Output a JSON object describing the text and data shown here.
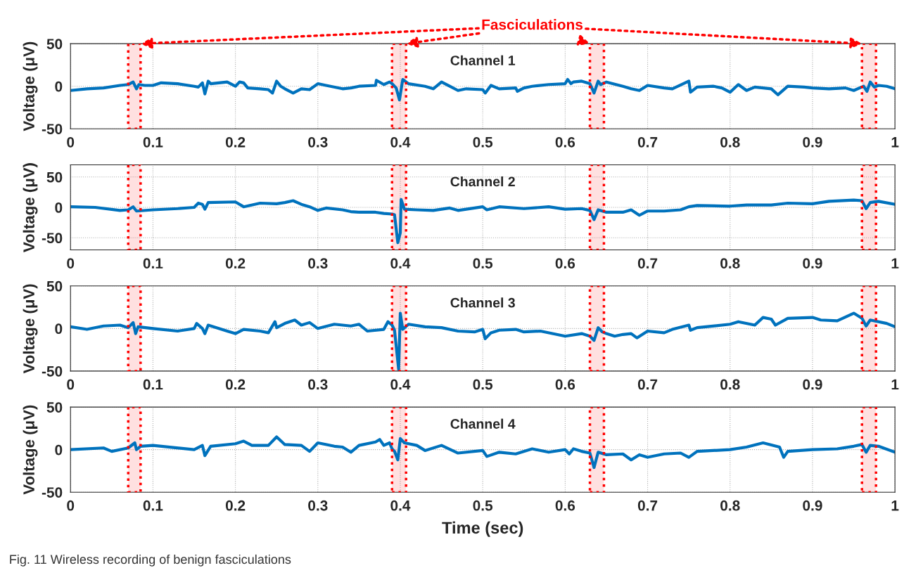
{
  "chart_data": [
    {
      "type": "line",
      "title": "Channel 1",
      "ylabel": "Voltage (μV)",
      "xlim": [
        0,
        1
      ],
      "ylim": [
        -50,
        50
      ],
      "xticks": [
        0,
        0.1,
        0.2,
        0.3,
        0.4,
        0.5,
        0.6,
        0.7,
        0.8,
        0.9,
        1
      ],
      "yticks": [
        -50,
        0,
        50
      ],
      "grid": true,
      "legend": false,
      "x": [
        0,
        0.02,
        0.04,
        0.06,
        0.07,
        0.076,
        0.08,
        0.083,
        0.09,
        0.1,
        0.11,
        0.13,
        0.15,
        0.155,
        0.16,
        0.163,
        0.167,
        0.17,
        0.19,
        0.2,
        0.205,
        0.21,
        0.215,
        0.23,
        0.24,
        0.245,
        0.25,
        0.255,
        0.26,
        0.27,
        0.28,
        0.29,
        0.3,
        0.31,
        0.33,
        0.34,
        0.35,
        0.37,
        0.371,
        0.38,
        0.387,
        0.39,
        0.395,
        0.399,
        0.403,
        0.41,
        0.43,
        0.44,
        0.45,
        0.46,
        0.47,
        0.48,
        0.5,
        0.503,
        0.51,
        0.52,
        0.54,
        0.542,
        0.55,
        0.56,
        0.58,
        0.6,
        0.603,
        0.607,
        0.61,
        0.62,
        0.63,
        0.635,
        0.64,
        0.643,
        0.65,
        0.67,
        0.68,
        0.69,
        0.7,
        0.72,
        0.73,
        0.75,
        0.752,
        0.76,
        0.78,
        0.79,
        0.8,
        0.81,
        0.82,
        0.83,
        0.85,
        0.858,
        0.87,
        0.89,
        0.9,
        0.92,
        0.94,
        0.95,
        0.962,
        0.966,
        0.97,
        0.975,
        0.98,
        0.99,
        1
      ],
      "series": [
        {
          "color": "#0072bd",
          "values": [
            -5,
            -3,
            -2,
            1,
            2,
            5,
            -3,
            2,
            1,
            1,
            4,
            3,
            0,
            -1,
            4,
            -9,
            6,
            3,
            5,
            0,
            5,
            4,
            -2,
            -3,
            -4,
            -8,
            6,
            0,
            -3,
            -8,
            -3,
            -4,
            3,
            1,
            -3,
            -2,
            0,
            1,
            7,
            2,
            5,
            3,
            -2,
            -16,
            8,
            3,
            0,
            -3,
            5,
            0,
            -5,
            -3,
            -4,
            -8,
            1,
            -3,
            -2,
            -6,
            -2,
            0,
            2,
            3,
            8,
            3,
            5,
            6,
            3,
            -8,
            6,
            2,
            5,
            0,
            -3,
            -5,
            1,
            -2,
            -3,
            6,
            -7,
            -1,
            0,
            -2,
            -7,
            2,
            -5,
            -1,
            -3,
            -10,
            0,
            -1,
            -2,
            -3,
            -2,
            -5,
            0,
            -6,
            5,
            -1,
            1,
            0,
            -3
          ]
        }
      ],
      "bands": [
        {
          "axis": "x",
          "from": 0.07,
          "to": 0.085,
          "color": "#ff0000"
        },
        {
          "axis": "x",
          "from": 0.39,
          "to": 0.407,
          "color": "#ff0000"
        },
        {
          "axis": "x",
          "from": 0.63,
          "to": 0.647,
          "color": "#ff0000"
        },
        {
          "axis": "x",
          "from": 0.96,
          "to": 0.977,
          "color": "#ff0000"
        }
      ],
      "annotations": [
        "Fasciculations"
      ]
    },
    {
      "type": "line",
      "title": "Channel 2",
      "ylabel": "Voltage (μV)",
      "xlim": [
        0,
        1
      ],
      "ylim": [
        -70,
        70
      ],
      "xticks": [
        0,
        0.1,
        0.2,
        0.3,
        0.4,
        0.5,
        0.6,
        0.7,
        0.8,
        0.9,
        1
      ],
      "yticks": [
        -50,
        0,
        50
      ],
      "grid": true,
      "legend": false,
      "x": [
        0,
        0.03,
        0.06,
        0.07,
        0.076,
        0.08,
        0.1,
        0.13,
        0.15,
        0.155,
        0.16,
        0.163,
        0.167,
        0.2,
        0.21,
        0.23,
        0.25,
        0.26,
        0.27,
        0.28,
        0.29,
        0.3,
        0.31,
        0.33,
        0.34,
        0.35,
        0.37,
        0.38,
        0.39,
        0.393,
        0.397,
        0.4,
        0.401,
        0.405,
        0.42,
        0.44,
        0.46,
        0.47,
        0.5,
        0.505,
        0.52,
        0.55,
        0.58,
        0.6,
        0.62,
        0.63,
        0.635,
        0.64,
        0.65,
        0.67,
        0.68,
        0.69,
        0.7,
        0.72,
        0.74,
        0.75,
        0.76,
        0.8,
        0.82,
        0.85,
        0.87,
        0.9,
        0.92,
        0.95,
        0.96,
        0.965,
        0.97,
        0.98,
        1
      ],
      "series": [
        {
          "color": "#0072bd",
          "values": [
            1,
            0,
            -5,
            -4,
            1,
            -6,
            -4,
            -2,
            0,
            7,
            5,
            -3,
            8,
            9,
            1,
            7,
            6,
            8,
            11,
            5,
            1,
            -5,
            -1,
            -4,
            -7,
            -8,
            -8,
            -10,
            -11,
            -12,
            -58,
            -42,
            13,
            -3,
            -4,
            -5,
            -1,
            -5,
            1,
            -4,
            1,
            -2,
            1,
            -3,
            -2,
            -5,
            -20,
            -4,
            -8,
            -8,
            -4,
            -13,
            -6,
            -6,
            -4,
            1,
            3,
            2,
            4,
            4,
            7,
            6,
            10,
            12,
            11,
            -2,
            8,
            10,
            5
          ]
        }
      ],
      "bands": [
        {
          "axis": "x",
          "from": 0.07,
          "to": 0.085,
          "color": "#ff0000"
        },
        {
          "axis": "x",
          "from": 0.39,
          "to": 0.407,
          "color": "#ff0000"
        },
        {
          "axis": "x",
          "from": 0.63,
          "to": 0.647,
          "color": "#ff0000"
        },
        {
          "axis": "x",
          "from": 0.96,
          "to": 0.977,
          "color": "#ff0000"
        }
      ]
    },
    {
      "type": "line",
      "title": "Channel 3",
      "ylabel": "Voltage (μV)",
      "xlim": [
        0,
        1
      ],
      "ylim": [
        -50,
        50
      ],
      "xticks": [
        0,
        0.1,
        0.2,
        0.3,
        0.4,
        0.5,
        0.6,
        0.7,
        0.8,
        0.9,
        1
      ],
      "yticks": [
        -50,
        0,
        50
      ],
      "grid": true,
      "legend": false,
      "x": [
        0,
        0.02,
        0.04,
        0.06,
        0.07,
        0.076,
        0.079,
        0.082,
        0.1,
        0.13,
        0.15,
        0.153,
        0.16,
        0.163,
        0.167,
        0.19,
        0.2,
        0.21,
        0.23,
        0.24,
        0.248,
        0.25,
        0.26,
        0.272,
        0.28,
        0.29,
        0.3,
        0.32,
        0.34,
        0.35,
        0.36,
        0.38,
        0.385,
        0.39,
        0.393,
        0.398,
        0.4,
        0.403,
        0.41,
        0.43,
        0.45,
        0.47,
        0.49,
        0.5,
        0.503,
        0.51,
        0.52,
        0.54,
        0.55,
        0.57,
        0.6,
        0.62,
        0.63,
        0.635,
        0.64,
        0.645,
        0.65,
        0.66,
        0.67,
        0.68,
        0.687,
        0.7,
        0.72,
        0.73,
        0.75,
        0.752,
        0.76,
        0.8,
        0.81,
        0.83,
        0.84,
        0.85,
        0.855,
        0.87,
        0.9,
        0.91,
        0.93,
        0.95,
        0.96,
        0.965,
        0.97,
        0.99,
        1
      ],
      "series": [
        {
          "color": "#0072bd",
          "values": [
            2,
            -1,
            3,
            4,
            1,
            7,
            -6,
            2,
            0,
            -3,
            0,
            6,
            0,
            -6,
            4,
            -3,
            -6,
            -1,
            -3,
            -5,
            8,
            1,
            6,
            10,
            4,
            7,
            0,
            5,
            3,
            5,
            -3,
            -1,
            8,
            4,
            -2,
            -48,
            18,
            -1,
            5,
            2,
            1,
            -3,
            -4,
            -1,
            -12,
            -5,
            -2,
            -1,
            -4,
            -3,
            -9,
            -6,
            -9,
            -14,
            1,
            -4,
            -6,
            -9,
            -7,
            -6,
            -11,
            -3,
            -5,
            -1,
            4,
            -2,
            1,
            5,
            8,
            4,
            13,
            11,
            4,
            12,
            13,
            10,
            9,
            18,
            12,
            3,
            10,
            6,
            2
          ]
        }
      ],
      "bands": [
        {
          "axis": "x",
          "from": 0.07,
          "to": 0.085,
          "color": "#ff0000"
        },
        {
          "axis": "x",
          "from": 0.39,
          "to": 0.407,
          "color": "#ff0000"
        },
        {
          "axis": "x",
          "from": 0.63,
          "to": 0.647,
          "color": "#ff0000"
        },
        {
          "axis": "x",
          "from": 0.96,
          "to": 0.977,
          "color": "#ff0000"
        }
      ]
    },
    {
      "type": "line",
      "title": "Channel 4",
      "xlabel": "Time (sec)",
      "ylabel": "Voltage (μV)",
      "xlim": [
        0,
        1
      ],
      "ylim": [
        -50,
        50
      ],
      "xticks": [
        0,
        0.1,
        0.2,
        0.3,
        0.4,
        0.5,
        0.6,
        0.7,
        0.8,
        0.9,
        1
      ],
      "yticks": [
        -50,
        0,
        50
      ],
      "grid": true,
      "legend": false,
      "x": [
        0,
        0.04,
        0.05,
        0.07,
        0.078,
        0.08,
        0.085,
        0.1,
        0.15,
        0.16,
        0.163,
        0.17,
        0.2,
        0.21,
        0.22,
        0.24,
        0.25,
        0.26,
        0.28,
        0.29,
        0.3,
        0.32,
        0.33,
        0.34,
        0.35,
        0.37,
        0.375,
        0.38,
        0.387,
        0.39,
        0.393,
        0.397,
        0.4,
        0.405,
        0.42,
        0.43,
        0.45,
        0.47,
        0.5,
        0.505,
        0.52,
        0.54,
        0.56,
        0.58,
        0.6,
        0.605,
        0.61,
        0.62,
        0.63,
        0.635,
        0.64,
        0.65,
        0.67,
        0.68,
        0.69,
        0.7,
        0.72,
        0.74,
        0.75,
        0.76,
        0.8,
        0.82,
        0.84,
        0.86,
        0.865,
        0.87,
        0.9,
        0.93,
        0.95,
        0.96,
        0.965,
        0.97,
        0.98,
        1
      ],
      "series": [
        {
          "color": "#0072bd",
          "values": [
            0,
            2,
            -2,
            2,
            8,
            0,
            4,
            5,
            0,
            5,
            -7,
            4,
            7,
            10,
            5,
            5,
            15,
            6,
            5,
            -2,
            8,
            4,
            3,
            -3,
            5,
            9,
            12,
            5,
            8,
            1,
            -2,
            -12,
            13,
            8,
            5,
            -1,
            5,
            -4,
            -1,
            -8,
            -3,
            -5,
            1,
            -3,
            0,
            -5,
            1,
            -2,
            -4,
            -21,
            -3,
            -6,
            -5,
            -12,
            -6,
            -9,
            -5,
            -4,
            -9,
            -2,
            0,
            3,
            8,
            3,
            -9,
            -2,
            0,
            1,
            4,
            6,
            -3,
            5,
            4,
            -3
          ]
        }
      ],
      "bands": [
        {
          "axis": "x",
          "from": 0.07,
          "to": 0.085,
          "color": "#ff0000"
        },
        {
          "axis": "x",
          "from": 0.39,
          "to": 0.407,
          "color": "#ff0000"
        },
        {
          "axis": "x",
          "from": 0.63,
          "to": 0.647,
          "color": "#ff0000"
        },
        {
          "axis": "x",
          "from": 0.96,
          "to": 0.977,
          "color": "#ff0000"
        }
      ],
      "annotations": [
        "Fig. 11 Wireless recording of benign fasciculations"
      ]
    }
  ]
}
